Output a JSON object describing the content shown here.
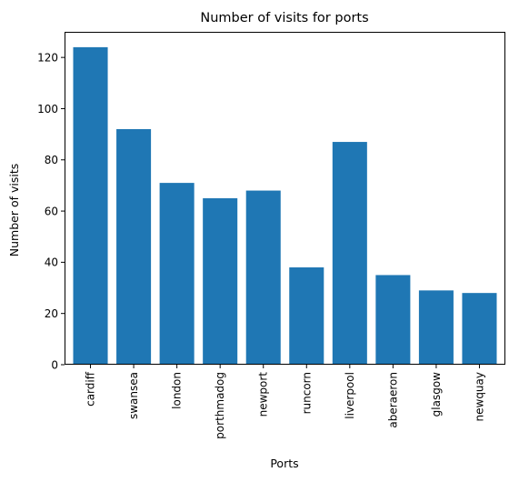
{
  "chart_data": {
    "type": "bar",
    "title": "Number of visits for ports",
    "xlabel": "Ports",
    "ylabel": "Number of visits",
    "categories": [
      "cardiff",
      "swansea",
      "london",
      "porthmadog",
      "newport",
      "runcorn",
      "liverpool",
      "aberaeron",
      "glasgow",
      "newquay"
    ],
    "values": [
      124,
      92,
      71,
      65,
      68,
      38,
      87,
      35,
      29,
      28
    ],
    "ylim": [
      0,
      130
    ],
    "yticks": [
      0,
      20,
      40,
      60,
      80,
      100,
      120
    ],
    "bar_color": "#1f77b4",
    "grid": false,
    "legend": "none"
  }
}
